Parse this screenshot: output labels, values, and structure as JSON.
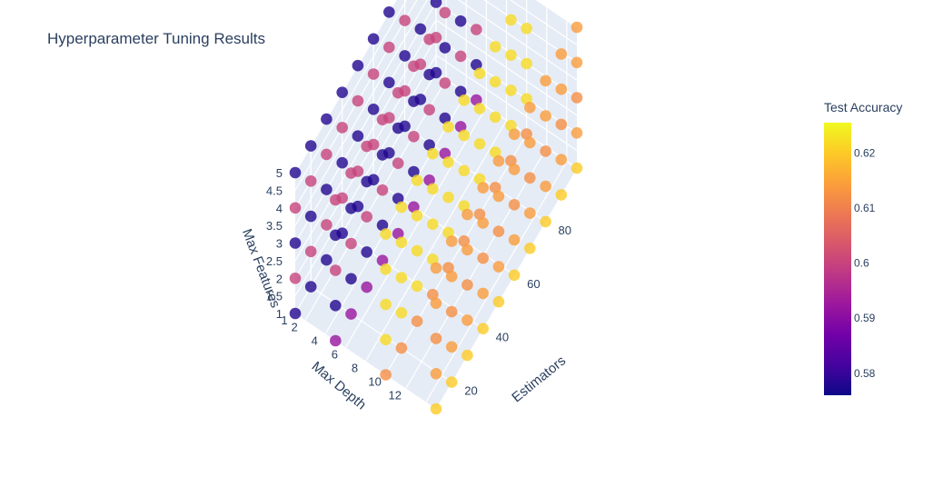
{
  "chart_data": {
    "type": "scatter",
    "title": "Hyperparameter Tuning Results",
    "axes": {
      "x": {
        "label": "Max Depth",
        "ticks": [
          "1",
          "2",
          "4",
          "6",
          "8",
          "10",
          "12"
        ]
      },
      "y": {
        "label": "Estimators",
        "ticks": [
          "20",
          "40",
          "60",
          "80"
        ]
      },
      "z": {
        "label": "Max Features",
        "ticks": [
          "1",
          "1.5",
          "2",
          "2.5",
          "3",
          "3.5",
          "4",
          "4.5",
          "5"
        ]
      }
    },
    "colorbar": {
      "title": "Test Accuracy",
      "ticks": [
        "0.58",
        "0.59",
        "0.6",
        "0.61",
        "0.62"
      ],
      "range": [
        0.576,
        0.6255
      ],
      "colors": [
        "#0d0887",
        "#46039f",
        "#7201a8",
        "#9c179e",
        "#bd3786",
        "#d8576b",
        "#ed7953",
        "#fb9f3a",
        "#fdca26",
        "#f0f921"
      ]
    },
    "rows": [
      {
        "max_features": 5,
        "max_depth": 1,
        "accuracy": 0.578
      },
      {
        "max_features": 5,
        "max_depth": 5,
        "accuracy": 0.6
      },
      {
        "max_features": 5,
        "max_depth": 10,
        "accuracy": 0.622
      },
      {
        "max_features": 5,
        "max_depth": 15,
        "accuracy": 0.614
      },
      {
        "max_features": 4,
        "max_depth": 1,
        "accuracy": 0.6
      },
      {
        "max_features": 4,
        "max_depth": 5,
        "accuracy": 0.578
      },
      {
        "max_features": 4,
        "max_depth": 10,
        "accuracy": 0.622
      },
      {
        "max_features": 4,
        "max_depth": 15,
        "accuracy": 0.614
      },
      {
        "max_features": 3,
        "max_depth": 1,
        "accuracy": 0.578
      },
      {
        "max_features": 3,
        "max_depth": 5,
        "accuracy": 0.6
      },
      {
        "max_features": 3,
        "max_depth": 10,
        "accuracy": 0.622
      },
      {
        "max_features": 3,
        "max_depth": 15,
        "accuracy": 0.612
      },
      {
        "max_features": 2,
        "max_depth": 1,
        "accuracy": 0.6
      },
      {
        "max_features": 2,
        "max_depth": 5,
        "accuracy": 0.578
      },
      {
        "max_features": 2,
        "max_depth": 10,
        "accuracy": 0.622
      },
      {
        "max_features": 2,
        "max_depth": 15,
        "accuracy": 0.614
      },
      {
        "max_features": 1,
        "max_depth": 1,
        "accuracy": 0.578
      },
      {
        "max_features": 1,
        "max_depth": 5,
        "accuracy": 0.592
      },
      {
        "max_features": 1,
        "max_depth": 10,
        "accuracy": 0.612
      },
      {
        "max_features": 1,
        "max_depth": 15,
        "accuracy": 0.62
      }
    ],
    "estimators": [
      10,
      20,
      30,
      40,
      50,
      60,
      70,
      80,
      90,
      100
    ]
  }
}
